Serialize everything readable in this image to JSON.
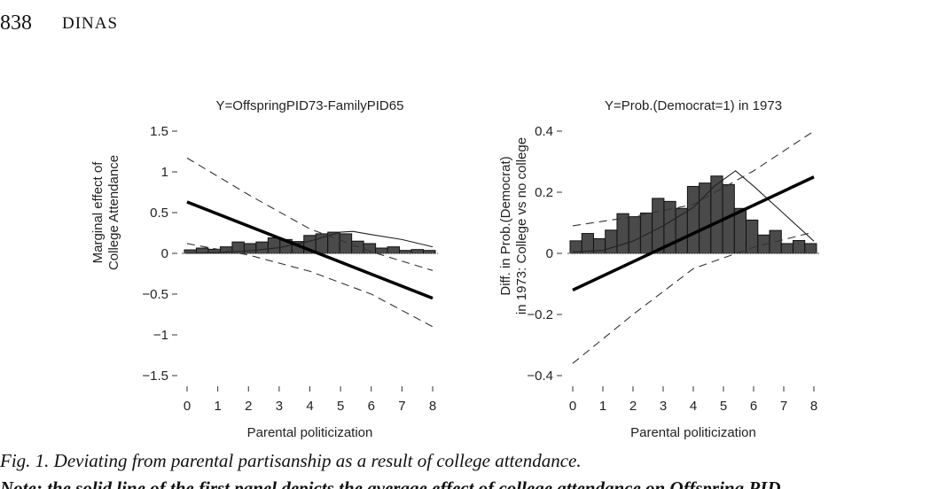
{
  "header": {
    "page_number": "838",
    "running_head": "DINAS"
  },
  "caption": "Fig. 1.  Deviating from parental partisanship as a result of college attendance.",
  "note": "Note: the solid line of the first panel depicts the average effect of college attendance on Offspring PID",
  "chart_data": [
    {
      "type": "line",
      "title": "Y=OffspringPID73-FamilyPID65",
      "xlabel": "Parental politicization",
      "ylabel": [
        "Marginal effect of",
        "College Attendance"
      ],
      "xlim": [
        0,
        8
      ],
      "ylim": [
        -1.5,
        1.5
      ],
      "xticks": [
        0,
        1,
        2,
        3,
        4,
        5,
        6,
        7,
        8
      ],
      "yticks": [
        1.5,
        1,
        0.5,
        0,
        -0.5,
        -1,
        -1.5
      ],
      "ytick_labels": [
        "1.5",
        "1",
        "0.5",
        "0",
        "−0.5",
        "−1",
        "−1.5"
      ],
      "effect": {
        "x": [
          0,
          8
        ],
        "y": [
          0.63,
          -0.55
        ]
      },
      "ci_upper": {
        "x": [
          0,
          2,
          4,
          6,
          8
        ],
        "y": [
          1.17,
          0.72,
          0.3,
          0.02,
          -0.21
        ]
      },
      "ci_lower": {
        "x": [
          0,
          2,
          4,
          6,
          8
        ],
        "y": [
          0.12,
          -0.02,
          -0.22,
          -0.5,
          -0.9
        ]
      },
      "density": {
        "x": [
          0,
          1,
          2,
          3,
          4,
          5,
          5.4,
          6,
          7,
          8
        ],
        "y": [
          0.0,
          0.01,
          0.03,
          0.07,
          0.15,
          0.26,
          0.27,
          0.23,
          0.17,
          0.08
        ]
      },
      "histogram": [
        0.043,
        0.065,
        0.05,
        0.08,
        0.14,
        0.12,
        0.14,
        0.19,
        0.17,
        0.145,
        0.22,
        0.24,
        0.26,
        0.24,
        0.15,
        0.12,
        0.065,
        0.08,
        0.036,
        0.047,
        0.036
      ]
    },
    {
      "type": "line",
      "title": "Y=Prob.(Democrat=1) in 1973",
      "xlabel": "Parental politicization",
      "ylabel": [
        "Diff. in Prob.(Democrat)",
        "in 1973: College vs no college"
      ],
      "xlim": [
        0,
        8
      ],
      "ylim": [
        -0.4,
        0.4
      ],
      "xticks": [
        0,
        1,
        2,
        3,
        4,
        5,
        6,
        7,
        8
      ],
      "yticks": [
        0.4,
        0.2,
        0,
        -0.2,
        -0.4
      ],
      "ytick_labels": [
        "0.4",
        "0.2",
        "0",
        "−0.2",
        "−0.4"
      ],
      "effect": {
        "x": [
          0,
          8
        ],
        "y": [
          -0.12,
          0.25
        ]
      },
      "ci_upper": {
        "x": [
          0,
          2,
          4,
          6,
          8
        ],
        "y": [
          0.09,
          0.12,
          0.16,
          0.27,
          0.4
        ]
      },
      "ci_lower": {
        "x": [
          0,
          2,
          4,
          6,
          8
        ],
        "y": [
          -0.36,
          -0.2,
          -0.05,
          0.02,
          0.07
        ]
      },
      "density": {
        "x": [
          0,
          1,
          2,
          3,
          4,
          4.7,
          5.4,
          6,
          7,
          8
        ],
        "y": [
          0.005,
          0.01,
          0.04,
          0.09,
          0.15,
          0.22,
          0.27,
          0.22,
          0.13,
          0.04
        ]
      },
      "histogram": [
        0.041,
        0.065,
        0.048,
        0.076,
        0.13,
        0.12,
        0.132,
        0.18,
        0.17,
        0.147,
        0.219,
        0.23,
        0.253,
        0.225,
        0.147,
        0.109,
        0.06,
        0.075,
        0.032,
        0.042,
        0.032
      ]
    }
  ]
}
